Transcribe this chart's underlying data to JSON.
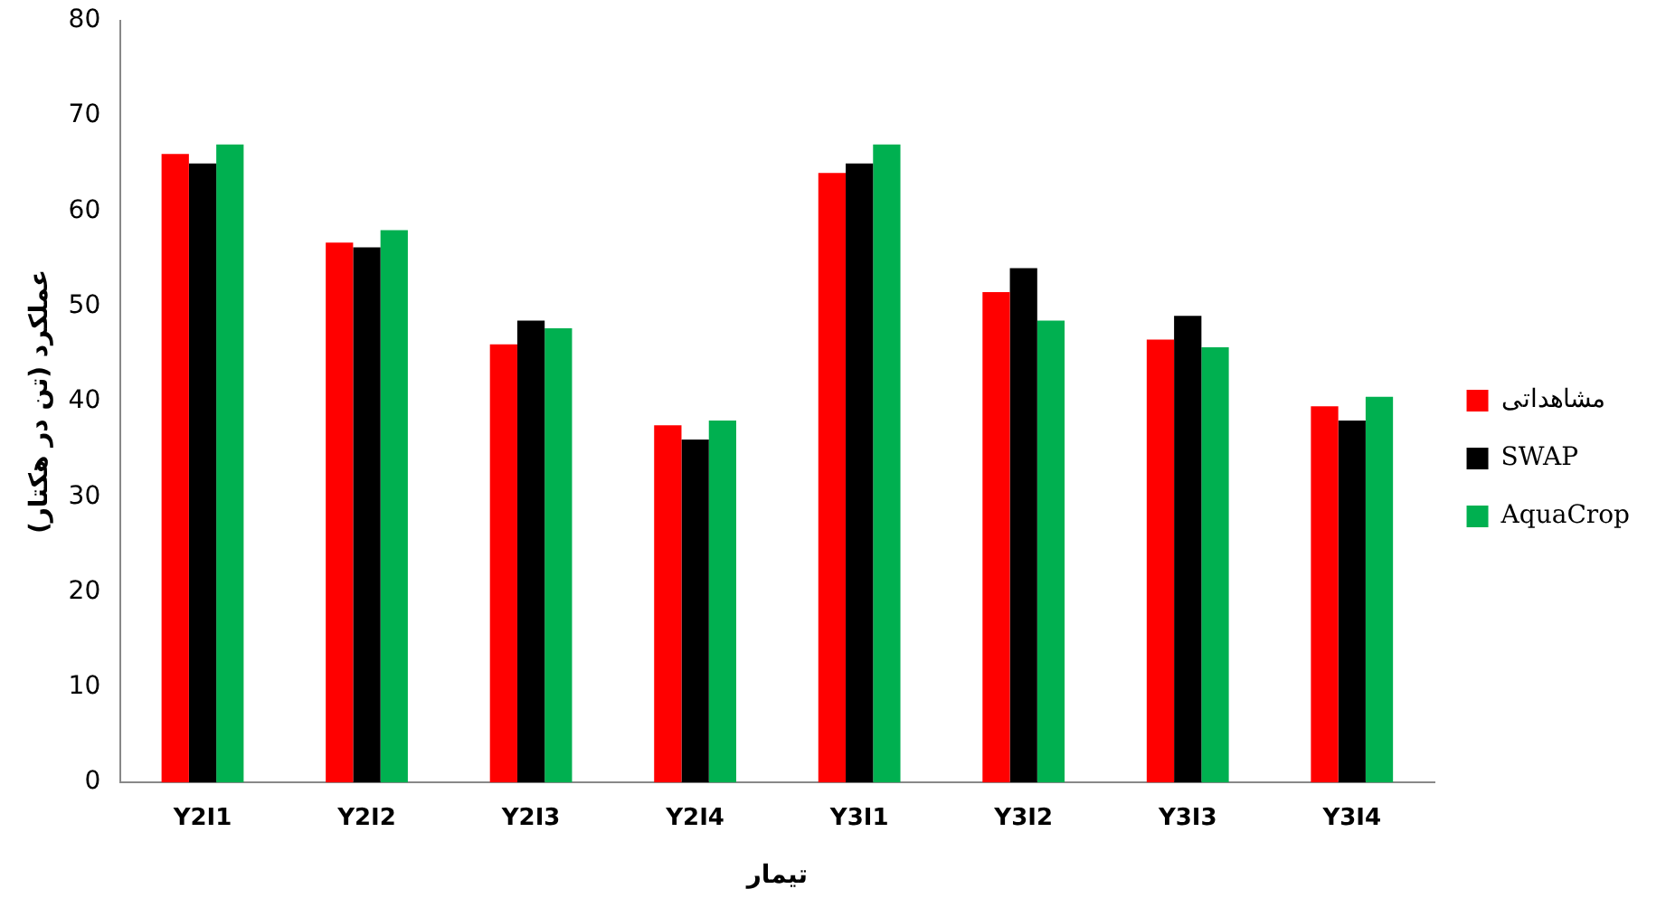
{
  "chart_data": {
    "type": "bar",
    "xlabel": "تیمار",
    "ylabel": "عملکرد (تن در هکتار)",
    "categories": [
      "Y2I1",
      "Y2I2",
      "Y2I3",
      "Y2I4",
      "Y3I1",
      "Y3I2",
      "Y3I3",
      "Y3I4"
    ],
    "series": [
      {
        "name": "مشاهداتی",
        "color": "#ff0000",
        "values": [
          66,
          56.7,
          46,
          37.5,
          64,
          51.5,
          46.5,
          39.5
        ]
      },
      {
        "name": "SWAP",
        "color": "#000000",
        "values": [
          65,
          56.2,
          48.5,
          36,
          65,
          54,
          49,
          38
        ]
      },
      {
        "name": "AquaCrop",
        "color": "#00b050",
        "values": [
          67,
          58,
          47.7,
          38,
          67,
          48.5,
          45.7,
          40.5
        ]
      }
    ],
    "ylim": [
      0,
      80
    ],
    "yticks": [
      0,
      10,
      20,
      30,
      40,
      50,
      60,
      70,
      80
    ],
    "grid": false,
    "legend": "right"
  }
}
